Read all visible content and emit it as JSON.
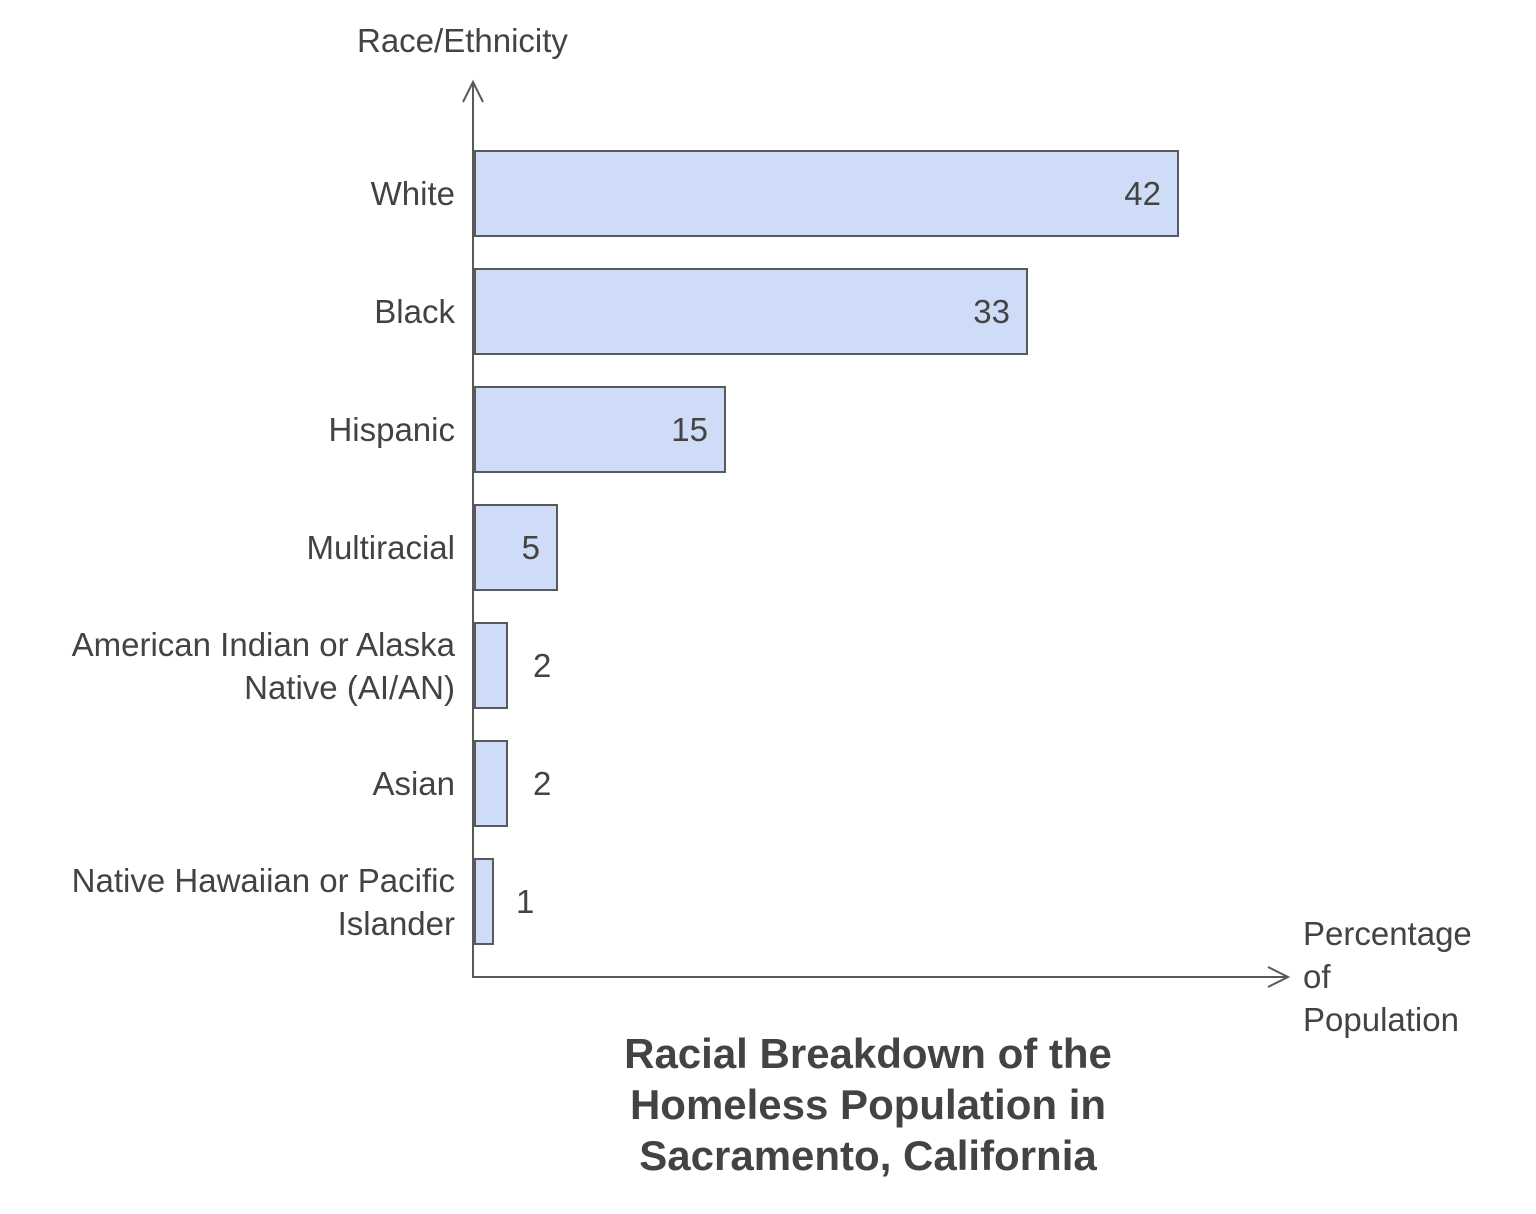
{
  "chart_data": {
    "type": "bar",
    "orientation": "horizontal",
    "title": "Racial Breakdown of the Homeless Population in Sacramento, California",
    "title_lines": [
      "Racial Breakdown of the",
      "Homeless Population in",
      "Sacramento, California"
    ],
    "xlabel": "Percentage of Population",
    "xlabel_lines": [
      "Percentage",
      "of",
      "Population"
    ],
    "ylabel": "Race/Ethnicity",
    "categories": [
      "White",
      "Black",
      "Hispanic",
      "Multiracial",
      "American Indian or Alaska Native (AI/AN)",
      "Asian",
      "Native Hawaiian or Pacific Islander"
    ],
    "label_lines": [
      [
        "White"
      ],
      [
        "Black"
      ],
      [
        "Hispanic"
      ],
      [
        "Multiracial"
      ],
      [
        "American Indian or Alaska",
        "Native (AI/AN)"
      ],
      [
        "Asian"
      ],
      [
        "Native Hawaiian or Pacific",
        "Islander"
      ]
    ],
    "values": [
      42,
      33,
      15,
      5,
      2,
      2,
      1
    ],
    "xlim": [
      0,
      48.5
    ],
    "grid": false,
    "legend": null,
    "value_label_inside_min": 5,
    "bar_fill": "#cedcf7",
    "bar_border": "#595959",
    "text_color": "#434343",
    "axis_color": "#595959"
  }
}
